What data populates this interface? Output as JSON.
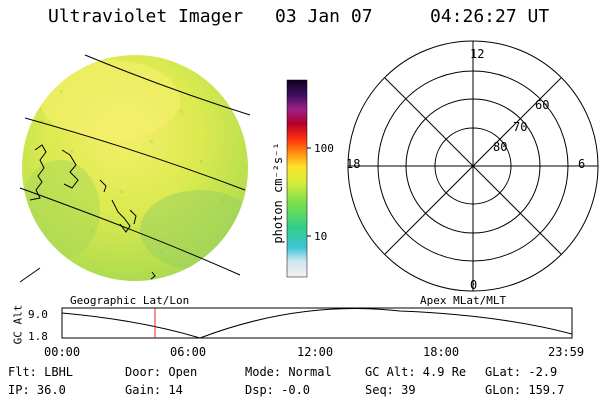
{
  "header": {
    "title": "Ultraviolet Imager",
    "date": "03 Jan 07",
    "time": "04:26:27 UT"
  },
  "colorbar": {
    "label": "photon cm⁻²s⁻¹",
    "ticks": [
      "100",
      "10"
    ]
  },
  "polar_plot": {
    "mlt_labels": [
      "12",
      "18",
      "6",
      "0"
    ],
    "lat_labels": [
      "60",
      "70",
      "80"
    ]
  },
  "map_labels": {
    "left": "Geographic Lat/Lon",
    "right": "Apex MLat/MLT"
  },
  "altitude_plot": {
    "ylabel": "GC Alt",
    "yticks": [
      "9.0",
      "1.8"
    ],
    "xticks": [
      "00:00",
      "06:00",
      "12:00",
      "18:00",
      "23:59"
    ],
    "current_time_marker": "04:26:27"
  },
  "info": {
    "filter": "Flt: LBHL",
    "door": "Door: Open",
    "mode": "Mode: Normal",
    "gc_alt": "GC Alt: 4.9 Re",
    "glat": "GLat: -2.9",
    "ip": "IP: 36.0",
    "gain": "Gain: 14",
    "dsp": "Dsp: -0.0",
    "seq": "Seq: 39",
    "glon": "GLon: 159.7"
  },
  "colors": {
    "image_base": "#d2e84a",
    "image_bright": "#f0ee60",
    "image_green": "#9ed456",
    "marker": "#e02020"
  }
}
